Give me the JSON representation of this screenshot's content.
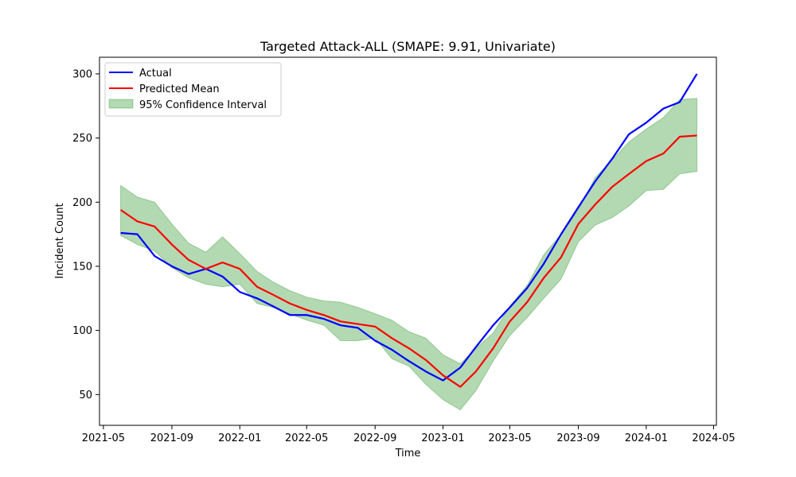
{
  "chart_data": {
    "type": "line",
    "title": "Targeted Attack-ALL (SMAPE: 9.91, Univariate)",
    "xlabel": "Time",
    "ylabel": "Incident Count",
    "xlim": [
      "2021-04-24",
      "2024-05-06"
    ],
    "ylim": [
      26,
      313
    ],
    "x_ticks": [
      {
        "date": "2021-05-01",
        "label": "2021-05"
      },
      {
        "date": "2021-09-01",
        "label": "2021-09"
      },
      {
        "date": "2022-01-01",
        "label": "2022-01"
      },
      {
        "date": "2022-05-01",
        "label": "2022-05"
      },
      {
        "date": "2022-09-01",
        "label": "2022-09"
      },
      {
        "date": "2023-01-01",
        "label": "2023-01"
      },
      {
        "date": "2023-05-01",
        "label": "2023-05"
      },
      {
        "date": "2023-09-01",
        "label": "2023-09"
      },
      {
        "date": "2024-01-01",
        "label": "2024-01"
      },
      {
        "date": "2024-05-01",
        "label": "2024-05"
      }
    ],
    "y_ticks": [
      50,
      100,
      150,
      200,
      250,
      300
    ],
    "legend_position": "top-left",
    "grid": false,
    "x": [
      "2021-06-01",
      "2021-07-01",
      "2021-08-01",
      "2021-09-01",
      "2021-10-01",
      "2021-11-01",
      "2021-12-01",
      "2022-01-01",
      "2022-02-01",
      "2022-03-01",
      "2022-04-01",
      "2022-05-01",
      "2022-06-01",
      "2022-07-01",
      "2022-08-01",
      "2022-09-01",
      "2022-10-01",
      "2022-11-01",
      "2022-12-01",
      "2023-01-01",
      "2023-02-01",
      "2023-03-01",
      "2023-04-01",
      "2023-05-01",
      "2023-06-01",
      "2023-07-01",
      "2023-08-01",
      "2023-09-01",
      "2023-10-01",
      "2023-11-01",
      "2023-12-01",
      "2024-01-01",
      "2024-02-01",
      "2024-03-01",
      "2024-04-01"
    ],
    "series": [
      {
        "name": "Actual",
        "color": "#0000ff",
        "values": [
          176,
          175,
          158,
          150,
          144,
          148,
          142,
          130,
          125,
          119,
          112,
          112,
          109,
          104,
          102,
          92,
          85,
          76,
          68,
          61,
          71,
          87,
          104,
          118,
          133,
          152,
          175,
          196,
          216,
          234,
          253,
          262,
          273,
          278,
          300
        ]
      },
      {
        "name": "Predicted Mean",
        "color": "#ff0000",
        "values": [
          194,
          185,
          181,
          167,
          155,
          148,
          153,
          148,
          134,
          128,
          121,
          116,
          112,
          107,
          105,
          103,
          94,
          86,
          77,
          65,
          56,
          68,
          86,
          107,
          122,
          141,
          157,
          183,
          198,
          212,
          222,
          232,
          238,
          251,
          252
        ]
      }
    ],
    "confidence_interval": {
      "name": "95% Confidence Interval",
      "color": "#008000",
      "lower": [
        174,
        167,
        162,
        149,
        141,
        136,
        134,
        136,
        121,
        118,
        113,
        108,
        104,
        92,
        92,
        94,
        78,
        72,
        58,
        46,
        38,
        53,
        76,
        96,
        110,
        125,
        140,
        169,
        182,
        188,
        197,
        209,
        210,
        222,
        224
      ],
      "upper": [
        213,
        204,
        200,
        183,
        168,
        161,
        173,
        160,
        146,
        138,
        131,
        126,
        123,
        122,
        118,
        113,
        108,
        99,
        94,
        81,
        74,
        86,
        98,
        119,
        135,
        159,
        175,
        194,
        219,
        233,
        247,
        257,
        266,
        280,
        281
      ]
    }
  }
}
